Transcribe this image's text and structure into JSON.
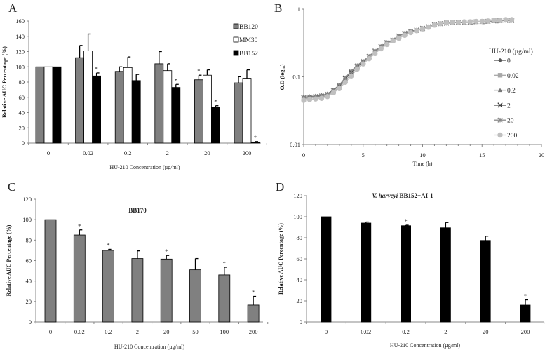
{
  "chart_data": [
    {
      "panel": "A",
      "type": "bar",
      "title": "",
      "xlabel": "HU-210 Concentration (µg/ml)",
      "ylabel": "Relative AUC Percentage (%)",
      "ylim": [
        0,
        160
      ],
      "yticks": [
        0,
        20,
        40,
        60,
        80,
        100,
        120,
        140,
        160
      ],
      "categories": [
        "0",
        "0.02",
        "0.2",
        "2",
        "20",
        "200"
      ],
      "legend_position": "top-right",
      "series": [
        {
          "name": "BB120",
          "color": "#808080",
          "values": [
            100,
            112,
            94,
            104,
            83,
            79
          ],
          "errors": [
            0,
            16,
            6,
            16,
            6,
            8
          ],
          "significant": [
            false,
            false,
            false,
            false,
            true,
            false
          ]
        },
        {
          "name": "MM30",
          "color": "#ffffff",
          "values": [
            100,
            121,
            99,
            95,
            89,
            85
          ],
          "errors": [
            0,
            22,
            14,
            9,
            7,
            11
          ],
          "significant": [
            false,
            false,
            false,
            false,
            false,
            false
          ]
        },
        {
          "name": "BB152",
          "color": "#000000",
          "values": [
            100,
            88,
            82,
            73,
            47,
            1.5
          ],
          "errors": [
            0,
            4,
            8,
            4,
            2,
            0.5
          ],
          "significant": [
            false,
            true,
            false,
            true,
            true,
            true
          ]
        }
      ],
      "annotation": "*"
    },
    {
      "panel": "B",
      "type": "line",
      "xlabel": "Time (h)",
      "ylabel": "O.D (log10)",
      "ylabel_main": "O.D (log",
      "ylabel_sub": "10",
      "ylabel_end": ")",
      "xlim": [
        0,
        20
      ],
      "xticks": [
        0,
        5,
        10,
        15,
        20
      ],
      "ylim": [
        0.01,
        1
      ],
      "yscale": "log",
      "yticks": [
        "0.01",
        "0.1",
        "1"
      ],
      "legend_title": "HU-210 (µg/ml)",
      "legend_position": "right",
      "x": [
        0,
        0.5,
        1,
        1.5,
        2,
        2.5,
        3,
        3.5,
        4,
        4.5,
        5,
        5.5,
        6,
        6.5,
        7,
        7.5,
        8,
        8.5,
        9,
        9.5,
        10,
        10.5,
        11,
        11.5,
        12,
        12.5,
        13,
        13.5,
        14,
        14.5,
        15,
        15.5,
        16,
        16.5,
        17,
        17.5
      ],
      "series": [
        {
          "name": "0",
          "marker": "diamond",
          "color": "#555555",
          "values": [
            0.05,
            0.051,
            0.052,
            0.053,
            0.056,
            0.064,
            0.075,
            0.095,
            0.12,
            0.145,
            0.17,
            0.2,
            0.24,
            0.28,
            0.32,
            0.35,
            0.4,
            0.44,
            0.47,
            0.49,
            0.52,
            0.55,
            0.59,
            0.61,
            0.62,
            0.63,
            0.63,
            0.64,
            0.64,
            0.65,
            0.65,
            0.66,
            0.67,
            0.67,
            0.68,
            0.68
          ]
        },
        {
          "name": "0.02",
          "marker": "square",
          "color": "#a8a8a8",
          "values": [
            0.047,
            0.048,
            0.049,
            0.05,
            0.053,
            0.06,
            0.07,
            0.088,
            0.11,
            0.137,
            0.162,
            0.19,
            0.23,
            0.27,
            0.31,
            0.345,
            0.38,
            0.42,
            0.46,
            0.48,
            0.51,
            0.54,
            0.58,
            0.61,
            0.63,
            0.63,
            0.64,
            0.64,
            0.65,
            0.65,
            0.66,
            0.66,
            0.67,
            0.68,
            0.69,
            0.69
          ]
        },
        {
          "name": "0.2",
          "marker": "triangle",
          "color": "#777777",
          "values": [
            0.05,
            0.051,
            0.052,
            0.053,
            0.056,
            0.064,
            0.076,
            0.097,
            0.122,
            0.147,
            0.172,
            0.2,
            0.24,
            0.28,
            0.32,
            0.35,
            0.4,
            0.44,
            0.47,
            0.49,
            0.52,
            0.55,
            0.59,
            0.61,
            0.62,
            0.63,
            0.63,
            0.64,
            0.64,
            0.65,
            0.65,
            0.66,
            0.67,
            0.67,
            0.68,
            0.68
          ]
        },
        {
          "name": "2",
          "marker": "x",
          "color": "#333333",
          "values": [
            0.049,
            0.05,
            0.051,
            0.052,
            0.055,
            0.063,
            0.074,
            0.094,
            0.118,
            0.143,
            0.168,
            0.2,
            0.24,
            0.28,
            0.32,
            0.35,
            0.4,
            0.44,
            0.47,
            0.49,
            0.52,
            0.55,
            0.59,
            0.61,
            0.62,
            0.63,
            0.63,
            0.64,
            0.64,
            0.65,
            0.65,
            0.66,
            0.67,
            0.67,
            0.68,
            0.68
          ]
        },
        {
          "name": "20",
          "marker": "asterisk",
          "color": "#888888",
          "values": [
            0.049,
            0.05,
            0.051,
            0.052,
            0.055,
            0.063,
            0.075,
            0.096,
            0.12,
            0.145,
            0.17,
            0.2,
            0.24,
            0.28,
            0.32,
            0.35,
            0.4,
            0.44,
            0.47,
            0.49,
            0.52,
            0.55,
            0.59,
            0.61,
            0.62,
            0.63,
            0.63,
            0.64,
            0.64,
            0.65,
            0.65,
            0.66,
            0.67,
            0.67,
            0.68,
            0.68
          ]
        },
        {
          "name": "200",
          "marker": "circle",
          "color": "#c0c0c0",
          "values": [
            0.045,
            0.046,
            0.047,
            0.048,
            0.051,
            0.058,
            0.067,
            0.083,
            0.103,
            0.13,
            0.155,
            0.185,
            0.22,
            0.26,
            0.3,
            0.34,
            0.37,
            0.41,
            0.45,
            0.48,
            0.51,
            0.54,
            0.58,
            0.61,
            0.63,
            0.64,
            0.64,
            0.65,
            0.65,
            0.66,
            0.66,
            0.67,
            0.68,
            0.68,
            0.7,
            0.7
          ]
        }
      ]
    },
    {
      "panel": "C",
      "type": "bar",
      "title": "BB170",
      "xlabel": "HU-210 Concentration (µg/ml)",
      "ylabel": "Relative AUC Percentage (%)",
      "ylim": [
        0,
        120
      ],
      "yticks": [
        0,
        20,
        40,
        60,
        80,
        100,
        120
      ],
      "categories": [
        "0",
        "0.02",
        "0.2",
        "2",
        "20",
        "50",
        "100",
        "200"
      ],
      "series": [
        {
          "color": "#808080",
          "values": [
            100,
            85,
            70,
            62,
            61.5,
            51,
            46,
            16.5
          ],
          "errors": [
            0,
            5,
            1,
            7.5,
            3.5,
            11,
            7.5,
            8.5
          ],
          "significant": [
            false,
            true,
            true,
            false,
            true,
            false,
            true,
            true
          ]
        }
      ],
      "annotation": "*"
    },
    {
      "panel": "D",
      "type": "bar",
      "title": "V. harveyi BB152+AI-1",
      "title_italic": "V. harveyi",
      "title_rest": " BB152+AI-1",
      "xlabel": "HU-210 Concentration (µg/ml)",
      "ylabel": "Relative AUC Percentage (%)",
      "ylim": [
        0,
        120
      ],
      "yticks": [
        0,
        20,
        40,
        60,
        80,
        100,
        120
      ],
      "categories": [
        "0",
        "0.02",
        "0.2",
        "2",
        "20",
        "200"
      ],
      "series": [
        {
          "color": "#000000",
          "values": [
            100,
            94,
            91.5,
            89.5,
            77.5,
            16
          ],
          "errors": [
            0,
            1,
            0.5,
            5,
            4,
            5
          ],
          "significant": [
            false,
            false,
            true,
            false,
            false,
            true
          ]
        }
      ],
      "annotation": "*"
    }
  ]
}
